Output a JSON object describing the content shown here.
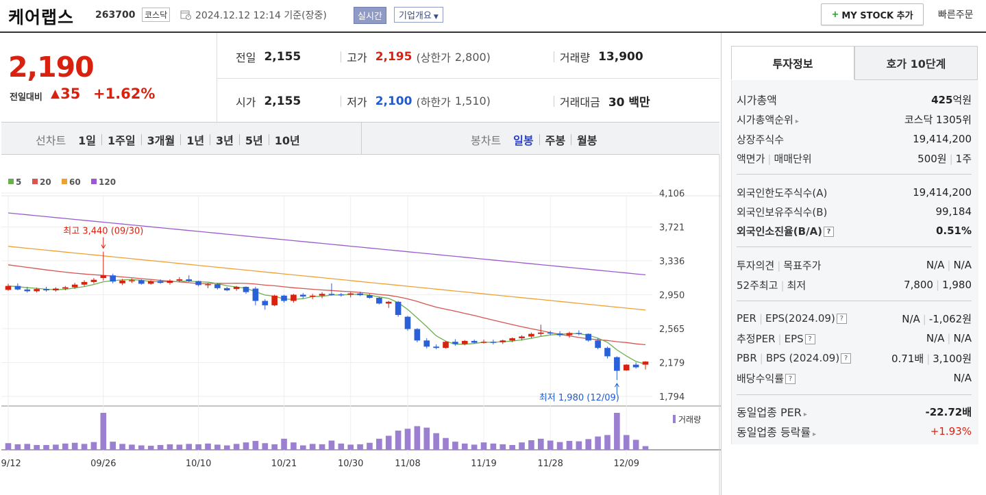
{
  "header": {
    "company": "케어랩스",
    "code": "263700",
    "market": "코스닥",
    "asof": "2024.12.12 12:14  기준(장중)",
    "realtime": "실시간",
    "company_info": "기업개요",
    "mystock": "MY STOCK 추가",
    "quick_order": "빠른주문"
  },
  "quote": {
    "price": "2,190",
    "change_label": "전일대비",
    "change": "35",
    "change_pct": "+1.62%",
    "prev_label": "전일",
    "prev": "2,155",
    "high_label": "고가",
    "high": "2,195",
    "upper_label": "(상한가",
    "upper": "2,800)",
    "volume_label": "거래량",
    "volume": "13,900",
    "open_label": "시가",
    "open": "2,155",
    "low_label": "저가",
    "low": "2,100",
    "lower_label": "(하한가",
    "lower": "1,510)",
    "amount_label": "거래대금",
    "amount": "30 백만"
  },
  "chart_tabs": {
    "line_label": "선차트",
    "line_items": [
      "1일",
      "1주일",
      "3개월",
      "1년",
      "3년",
      "5년",
      "10년"
    ],
    "candle_label": "봉차트",
    "candle_items": [
      "일봉",
      "주봉",
      "월봉"
    ],
    "candle_selected": 0
  },
  "chart_data": {
    "type": "candlestick",
    "legend": [
      {
        "name": "5",
        "color": "#6ab04c"
      },
      {
        "name": "20",
        "color": "#d9534f"
      },
      {
        "name": "60",
        "color": "#f0a030"
      },
      {
        "name": "120",
        "color": "#9b59d0"
      }
    ],
    "yticks": [
      "4,106",
      "3,721",
      "3,336",
      "2,950",
      "2,565",
      "2,179",
      "1,794"
    ],
    "ylim": [
      1794,
      4106
    ],
    "xticks": [
      "09/12",
      "09/26",
      "10/10",
      "10/21",
      "10/30",
      "11/08",
      "11/19",
      "11/28",
      "12/09"
    ],
    "high_annotation": "최고 3,440 (09/30)",
    "low_annotation": "최저 1,980 (12/09)",
    "volume_label": "거래량",
    "up_color": "#d9210f",
    "down_color": "#2a60d8",
    "candles": [
      [
        3005,
        3075,
        2995,
        3050
      ],
      [
        3050,
        3080,
        3000,
        3010
      ],
      [
        3010,
        3040,
        2975,
        2990
      ],
      [
        2990,
        3030,
        2975,
        3015
      ],
      [
        3015,
        3040,
        2985,
        3000
      ],
      [
        3000,
        3035,
        2985,
        3020
      ],
      [
        3020,
        3050,
        3000,
        3035
      ],
      [
        3035,
        3085,
        3015,
        3065
      ],
      [
        3065,
        3115,
        3045,
        3095
      ],
      [
        3095,
        3140,
        3075,
        3120
      ],
      [
        3140,
        3440,
        3110,
        3170
      ],
      [
        3170,
        3190,
        3080,
        3100
      ],
      [
        3080,
        3130,
        3060,
        3110
      ],
      [
        3110,
        3135,
        3085,
        3115
      ],
      [
        3115,
        3125,
        3065,
        3075
      ],
      [
        3075,
        3115,
        3065,
        3105
      ],
      [
        3105,
        3125,
        3075,
        3085
      ],
      [
        3085,
        3125,
        3065,
        3110
      ],
      [
        3110,
        3150,
        3090,
        3125
      ],
      [
        3125,
        3170,
        3095,
        3105
      ],
      [
        3105,
        3110,
        3045,
        3060
      ],
      [
        3060,
        3085,
        3025,
        3070
      ],
      [
        3070,
        3085,
        3010,
        3025
      ],
      [
        3025,
        3040,
        2990,
        3000
      ],
      [
        3015,
        3050,
        2995,
        3040
      ],
      [
        3040,
        3045,
        2960,
        2980
      ],
      [
        3020,
        3040,
        2830,
        2880
      ],
      [
        2880,
        2900,
        2780,
        2830
      ],
      [
        2830,
        2950,
        2820,
        2940
      ],
      [
        2940,
        2950,
        2860,
        2880
      ],
      [
        2880,
        2960,
        2860,
        2950
      ],
      [
        2950,
        2970,
        2910,
        2930
      ],
      [
        2930,
        2960,
        2900,
        2940
      ],
      [
        2940,
        2980,
        2910,
        2960
      ],
      [
        2960,
        3080,
        2940,
        2955
      ],
      [
        2955,
        2970,
        2930,
        2950
      ],
      [
        2950,
        2980,
        2920,
        2965
      ],
      [
        2965,
        2985,
        2935,
        2945
      ],
      [
        2945,
        2960,
        2905,
        2915
      ],
      [
        2915,
        2925,
        2840,
        2850
      ],
      [
        2850,
        2880,
        2800,
        2870
      ],
      [
        2870,
        2880,
        2700,
        2720
      ],
      [
        2700,
        2710,
        2540,
        2560
      ],
      [
        2560,
        2570,
        2410,
        2430
      ],
      [
        2430,
        2455,
        2340,
        2360
      ],
      [
        2360,
        2385,
        2330,
        2345
      ],
      [
        2345,
        2425,
        2340,
        2415
      ],
      [
        2415,
        2445,
        2370,
        2390
      ],
      [
        2390,
        2435,
        2375,
        2425
      ],
      [
        2425,
        2440,
        2395,
        2405
      ],
      [
        2405,
        2440,
        2395,
        2415
      ],
      [
        2415,
        2440,
        2385,
        2410
      ],
      [
        2410,
        2440,
        2390,
        2430
      ],
      [
        2430,
        2465,
        2410,
        2455
      ],
      [
        2455,
        2490,
        2430,
        2475
      ],
      [
        2475,
        2520,
        2455,
        2505
      ],
      [
        2505,
        2610,
        2480,
        2520
      ],
      [
        2520,
        2540,
        2490,
        2510
      ],
      [
        2510,
        2535,
        2470,
        2490
      ],
      [
        2490,
        2530,
        2460,
        2515
      ],
      [
        2515,
        2545,
        2490,
        2505
      ],
      [
        2505,
        2510,
        2415,
        2430
      ],
      [
        2430,
        2455,
        2330,
        2345
      ],
      [
        2345,
        2360,
        2225,
        2250
      ],
      [
        2240,
        2250,
        1980,
        2085
      ],
      [
        2090,
        2160,
        2085,
        2155
      ],
      [
        2155,
        2180,
        2110,
        2125
      ],
      [
        2155,
        2195,
        2100,
        2190
      ]
    ],
    "volume_ratio": [
      0.18,
      0.15,
      0.16,
      0.13,
      0.13,
      0.14,
      0.17,
      0.19,
      0.16,
      0.21,
      1.0,
      0.22,
      0.16,
      0.14,
      0.12,
      0.11,
      0.13,
      0.15,
      0.14,
      0.16,
      0.15,
      0.17,
      0.14,
      0.12,
      0.16,
      0.2,
      0.24,
      0.18,
      0.15,
      0.3,
      0.2,
      0.12,
      0.16,
      0.15,
      0.25,
      0.17,
      0.14,
      0.15,
      0.19,
      0.3,
      0.38,
      0.52,
      0.57,
      0.64,
      0.6,
      0.45,
      0.32,
      0.22,
      0.17,
      0.14,
      0.2,
      0.17,
      0.15,
      0.13,
      0.2,
      0.26,
      0.3,
      0.25,
      0.21,
      0.24,
      0.23,
      0.29,
      0.36,
      0.4,
      1.0,
      0.4,
      0.27,
      0.1
    ]
  },
  "invest": {
    "tab1": "투자정보",
    "tab2": "호가 10단계",
    "market_cap_label": "시가총액",
    "market_cap": "425",
    "market_cap_unit": "억원",
    "rank_label": "시가총액순위",
    "rank": "코스닥 1305위",
    "shares_label": "상장주식수",
    "shares": "19,414,200",
    "par_label": "액면가",
    "lot_label": "매매단위",
    "par": "500원",
    "lot": "1주",
    "foreign_limit_label": "외국인한도주식수(A)",
    "foreign_limit": "19,414,200",
    "foreign_hold_label": "외국인보유주식수(B)",
    "foreign_hold": "99,184",
    "foreign_ratio_label": "외국인소진율(B/A)",
    "foreign_ratio": "0.51%",
    "opinion_label": "투자의견",
    "target_label": "목표주가",
    "opinion": "N/A",
    "target": "N/A",
    "w52_label": "52주최고",
    "w52low_label": "최저",
    "w52high": "7,800",
    "w52low": "1,980",
    "per_label": "PER",
    "eps_label": "EPS(2024.09)",
    "per": "N/A",
    "eps": "-1,062원",
    "est_per_label": "추정PER",
    "est_eps_label": "EPS",
    "est_per": "N/A",
    "est_eps": "N/A",
    "pbr_label": "PBR",
    "bps_label": "BPS (2024.09)",
    "pbr": "0.71배",
    "bps": "3,100원",
    "div_label": "배당수익률",
    "div": "N/A",
    "ind_per_label": "동일업종 PER",
    "ind_per": "-22.72배",
    "ind_chg_label": "동일업종 등락률",
    "ind_chg": "+1.93%"
  }
}
